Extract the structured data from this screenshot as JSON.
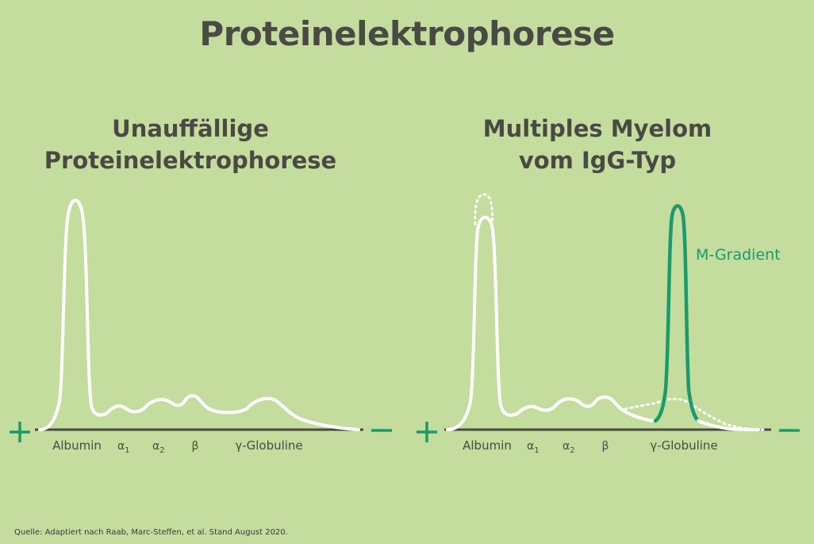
{
  "title": "Proteinelektrophorese",
  "left_panel": {
    "subtitle_line1": "Unauffällige",
    "subtitle_line2": "Proteinelektrophorese"
  },
  "right_panel": {
    "subtitle_line1": "Multiples Myelom",
    "subtitle_line2": "vom IgG-Typ",
    "annotation": "M-Gradient"
  },
  "fractions": {
    "albumin": "Albumin",
    "alpha1": "α",
    "alpha1_sub": "1",
    "alpha2": "α",
    "alpha2_sub": "2",
    "beta": "β",
    "gamma": "γ-Globuline"
  },
  "poles": {
    "positive": "+",
    "negative": "–"
  },
  "source": "Quelle: Adaptiert nach Raab, Marc-Steffen, et al. Stand August 2020.",
  "colors": {
    "background": "#c5dc9f",
    "curve": "#ffffff",
    "m_gradient": "#1b9a6b",
    "axis": "#4a4a45",
    "text": "#4a4a45"
  }
}
